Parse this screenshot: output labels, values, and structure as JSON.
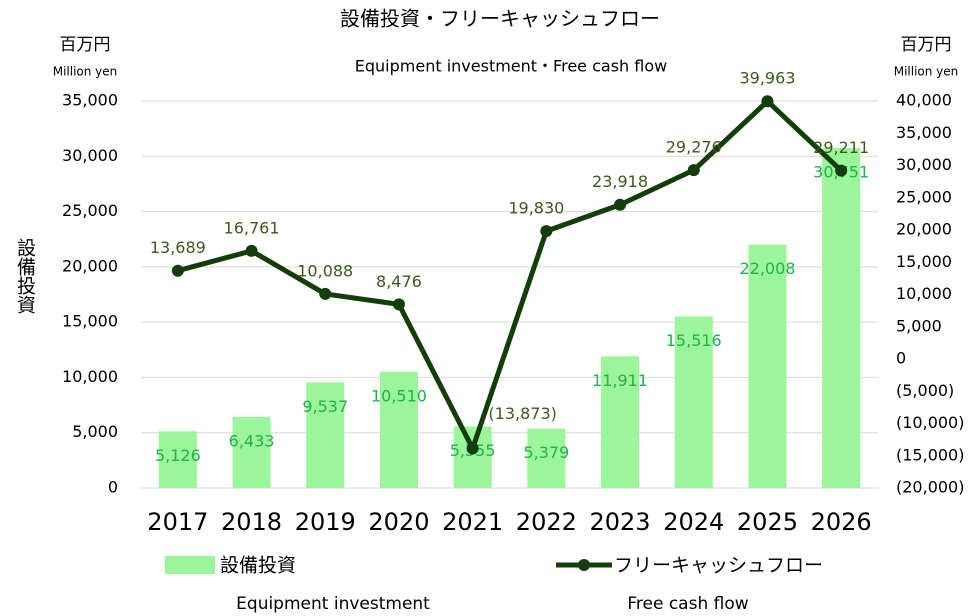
{
  "chart_data": {
    "type": "bar_line",
    "title": "設備投資・フリーキャッシュフロー",
    "subtitle": "Equipment investment・Free cash flow",
    "y_unit": "百万円",
    "y_unit_en": "Million yen",
    "y2_unit": "百万円",
    "y2_unit_en": "Million yen",
    "y_label": "設備投資",
    "categories": [
      "2017",
      "2018",
      "2019",
      "2020",
      "2021",
      "2022",
      "2023",
      "2024",
      "2025",
      "2026"
    ],
    "series": [
      {
        "name": "設備投資",
        "name_en": "Equipment investment",
        "type": "bar",
        "color": "#9bf59b",
        "label_color": "#22b14c",
        "values": [
          5126,
          6433,
          9537,
          10510,
          5555,
          5379,
          11911,
          15516,
          22008,
          30751
        ],
        "value_labels": [
          "5,126",
          "6,433",
          "9,537",
          "10,510",
          "5,555",
          "5,379",
          "11,911",
          "15,516",
          "22,008",
          "30,751"
        ]
      },
      {
        "name": "フリーキャッシュフロー",
        "name_en": "Free cash flow",
        "type": "line",
        "axis": "y2",
        "color": "#133d0a",
        "label_color": "#3b5a1c",
        "values": [
          13689,
          16761,
          10088,
          8476,
          -13873,
          19830,
          23918,
          29276,
          39963,
          29211
        ],
        "value_labels": [
          "13,689",
          "16,761",
          "10,088",
          "8,476",
          "(13,873)",
          "19,830",
          "23,918",
          "29,276",
          "39,963",
          "29,211"
        ]
      }
    ],
    "ylim": [
      0,
      35000
    ],
    "yticks": [
      0,
      {
        "value": 5000,
        "label": "5,000"
      },
      {
        "value": 10000,
        "label": "10,000"
      },
      {
        "value": 15000,
        "label": "15,000"
      },
      {
        "value": 20000,
        "label": "20,000"
      },
      {
        "value": 25000,
        "label": "25,000"
      },
      {
        "value": 30000,
        "label": "30,000"
      },
      {
        "value": 35000,
        "label": "35,000"
      }
    ],
    "y2lim": [
      -20000,
      40000
    ],
    "y2ticks": [
      {
        "value": -20000,
        "label": "(20,000)"
      },
      {
        "value": -15000,
        "label": "(15,000)"
      },
      {
        "value": -10000,
        "label": "(10,000)"
      },
      {
        "value": -5000,
        "label": "(5,000)"
      },
      0,
      {
        "value": 5000,
        "label": "5,000"
      },
      {
        "value": 10000,
        "label": "10,000"
      },
      {
        "value": 15000,
        "label": "15,000"
      },
      {
        "value": 20000,
        "label": "20,000"
      },
      {
        "value": 25000,
        "label": "25,000"
      },
      {
        "value": 30000,
        "label": "30,000"
      },
      {
        "value": 35000,
        "label": "35,000"
      },
      {
        "value": 40000,
        "label": "40,000"
      }
    ],
    "grid": true
  }
}
